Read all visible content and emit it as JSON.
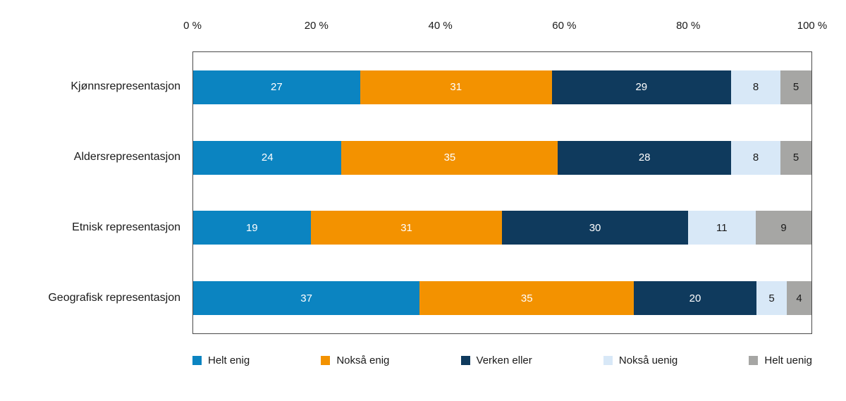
{
  "chart_data": {
    "type": "bar",
    "orientation": "horizontal-stacked",
    "title": "",
    "categories": [
      "Kjønnsrepresentasjon",
      "Aldersrepresentasjon",
      "Etnisk representasjon",
      "Geografisk representasjon"
    ],
    "series": [
      {
        "name": "Helt enig",
        "color": "#0b84c1",
        "label_color": "#ffffff",
        "values": [
          27,
          24,
          19,
          37
        ]
      },
      {
        "name": "Nokså enig",
        "color": "#f39200",
        "label_color": "#ffffff",
        "values": [
          31,
          35,
          31,
          35
        ]
      },
      {
        "name": "Verken eller",
        "color": "#0f3a5d",
        "label_color": "#ffffff",
        "values": [
          29,
          28,
          30,
          20
        ]
      },
      {
        "name": "Nokså uenig",
        "color": "#d8e8f7",
        "label_color": "#1a1a1a",
        "values": [
          8,
          8,
          11,
          5
        ]
      },
      {
        "name": "Helt uenig",
        "color": "#a6a6a4",
        "label_color": "#1a1a1a",
        "values": [
          5,
          5,
          9,
          4
        ]
      }
    ],
    "x_axis": {
      "position": "top",
      "range": [
        0,
        100
      ],
      "tick_labels": [
        "0 %",
        "20 %",
        "40 %",
        "60 %",
        "80 %",
        "100 %"
      ]
    },
    "legend": {
      "position": "bottom",
      "entries": [
        "Helt enig",
        "Nokså enig",
        "Verken eller",
        "Nokså uenig",
        "Helt uenig"
      ]
    },
    "grid": false,
    "plot_border_color": "#4a4a4a",
    "background_color": "#ffffff"
  }
}
